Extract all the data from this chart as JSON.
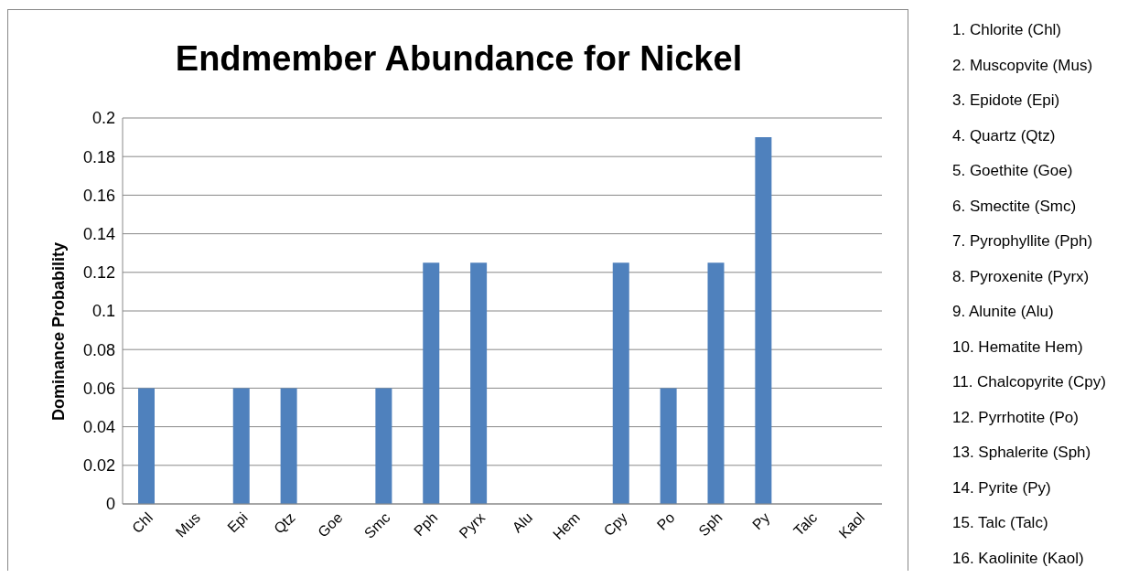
{
  "chart_data": {
    "type": "bar",
    "title": "Endmember Abundance for Nickel",
    "ylabel": "Dominance Probability",
    "categories": [
      "Chl",
      "Mus",
      "Epi",
      "Qtz",
      "Goe",
      "Smc",
      "Pph",
      "Pyrx",
      "Alu",
      "Hem",
      "Cpy",
      "Po",
      "Sph",
      "Py",
      "Talc",
      "Kaol"
    ],
    "values": [
      0.06,
      0,
      0.06,
      0.06,
      0,
      0.06,
      0.125,
      0.125,
      0,
      0,
      0.125,
      0.06,
      0.125,
      0.19,
      0,
      0
    ],
    "color": "#4f81bd",
    "ylim": [
      0,
      0.2
    ],
    "yticks": [
      0,
      0.02,
      0.04,
      0.06,
      0.08,
      0.1,
      0.12,
      0.14,
      0.16,
      0.18,
      0.2
    ],
    "grid": "y",
    "legend": false,
    "annotations": [
      "1.  Chlorite (Chl)",
      "2.  Muscopvite (Mus)",
      "3.  Epidote (Epi)",
      "4.  Quartz (Qtz)",
      "5.  Goethite (Goe)",
      "6.  Smectite (Smc)",
      "7.  Pyrophyllite (Pph)",
      "8.  Pyroxenite (Pyrx)",
      "9.  Alunite (Alu)",
      "10. Hematite Hem)",
      "11. Chalcopyrite (Cpy)",
      "12. Pyrrhotite (Po)",
      "13. Sphalerite (Sph)",
      "14. Pyrite (Py)",
      "15. Talc (Talc)",
      "16. Kaolinite (Kaol)"
    ]
  }
}
